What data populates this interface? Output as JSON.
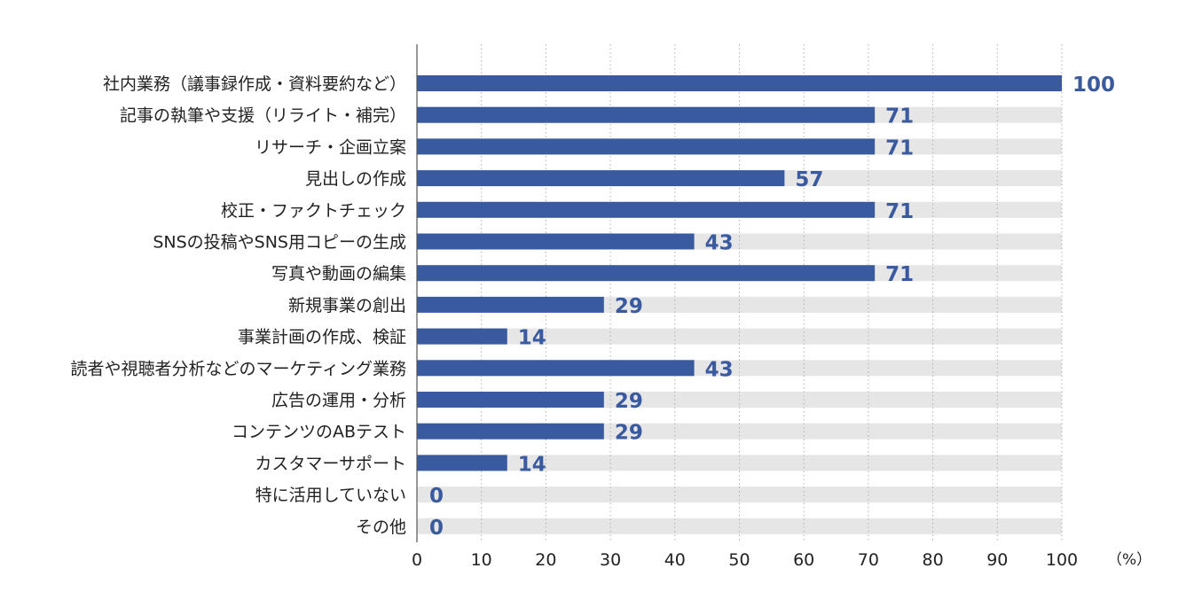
{
  "chart_data": {
    "type": "bar",
    "orientation": "horizontal",
    "categories": [
      "社内業務（議事録作成・資料要約など）",
      "記事の執筆や支援（リライト・補完）",
      "リサーチ・企画立案",
      "見出しの作成",
      "校正・ファクトチェック",
      "SNSの投稿やSNS用コピーの生成",
      "写真や動画の編集",
      "新規事業の創出",
      "事業計画の作成、検証",
      "読者や視聴者分析などのマーケティング業務",
      "広告の運用・分析",
      "コンテンツのABテスト",
      "カスタマーサポート",
      "特に活用していない",
      "その他"
    ],
    "values": [
      100,
      71,
      71,
      57,
      71,
      43,
      71,
      29,
      14,
      43,
      29,
      29,
      14,
      0,
      0
    ],
    "xlim": [
      0,
      100
    ],
    "xticks": [
      0,
      10,
      20,
      30,
      40,
      50,
      60,
      70,
      80,
      90,
      100
    ],
    "unit_label": "（%）",
    "grid": true,
    "colors": {
      "bar": "#3a5aa0",
      "track": "#e6e6e6",
      "value_text": "#3a5aa0",
      "grid": "#b0b0b0",
      "axis": "#555555"
    }
  }
}
